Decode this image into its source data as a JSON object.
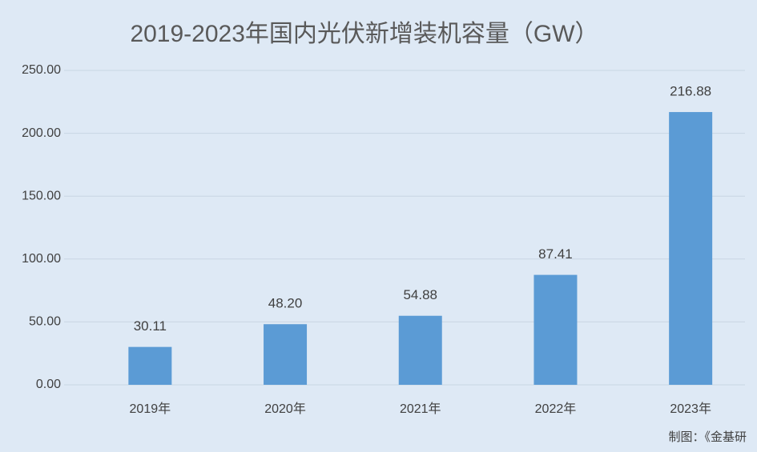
{
  "chart_data": {
    "type": "bar",
    "title": "2019-2023年国内光伏新增装机容量（GW）",
    "categories": [
      "2019年",
      "2020年",
      "2021年",
      "2022年",
      "2023年"
    ],
    "values": [
      30.11,
      48.2,
      54.88,
      87.41,
      216.88
    ],
    "value_labels": [
      "30.11",
      "48.20",
      "54.88",
      "87.41",
      "216.88"
    ],
    "color": "#5b9bd5",
    "ylim": [
      0,
      250
    ],
    "yticks": [
      {
        "value": 0,
        "label": "0.00"
      },
      {
        "value": 50,
        "label": "50.00"
      },
      {
        "value": 100,
        "label": "100.00"
      },
      {
        "value": 150,
        "label": "150.00"
      },
      {
        "value": 200,
        "label": "200.00"
      },
      {
        "value": 250,
        "label": "250.00"
      }
    ],
    "grid": true,
    "source": "制图：《金基研"
  }
}
